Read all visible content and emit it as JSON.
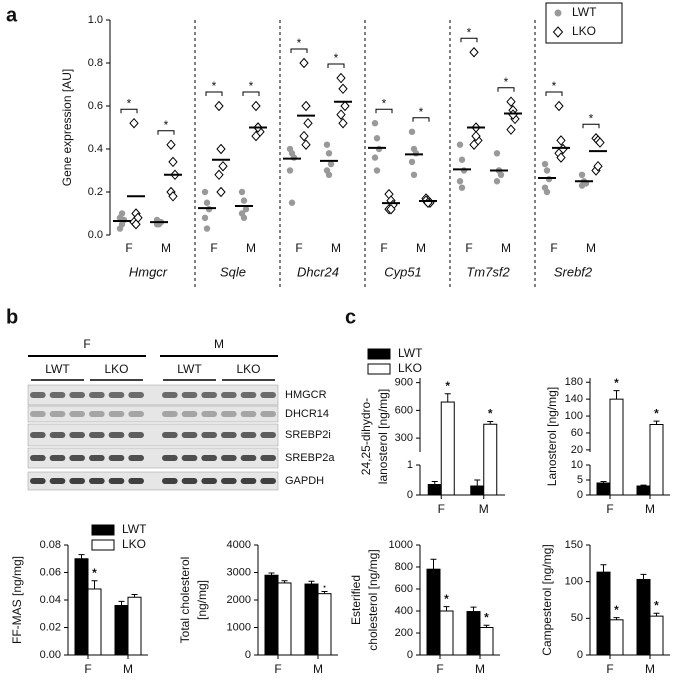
{
  "panel_labels": [
    "a",
    "b",
    "c"
  ],
  "blot": {
    "sex_labels": [
      "F",
      "M"
    ],
    "genotype_labels": [
      "LWT",
      "LKO",
      "LWT",
      "LKO"
    ],
    "proteins": [
      "HMGCR",
      "DHCR14",
      "SREBP2i",
      "SREBP2a",
      "GAPDH"
    ]
  },
  "chart_data": [
    {
      "type": "strip",
      "ylabel": "Gene expression [AU]",
      "group_labels": [
        "Hmgcr",
        "Sqle",
        "Dhcr24",
        "Cyp51",
        "Tm7sf2",
        "Srebf2"
      ],
      "categories": [
        "F",
        "M",
        "F",
        "M",
        "F",
        "M",
        "F",
        "M",
        "F",
        "M",
        "F",
        "M"
      ],
      "ylim": [
        0,
        1
      ],
      "yticks": [
        {
          "value": 0,
          "label": "0.0"
        },
        0.2,
        0.4,
        0.6,
        0.8,
        {
          "value": 1,
          "label": "1.0"
        }
      ],
      "significance": [
        "*",
        "*",
        "*",
        "*",
        "*",
        "*",
        "*",
        "*",
        "*",
        "*",
        "*",
        "*"
      ],
      "legend": "upper right",
      "series": [
        {
          "name": "LWT",
          "color": "#999999",
          "marker": "circle",
          "values": [
            [
              0.03,
              0.05,
              0.07,
              0.08,
              0.1
            ],
            [
              0.05,
              0.06,
              0.06,
              0.07,
              0.05
            ],
            [
              0.2,
              0.15,
              0.12,
              0.08,
              0.03
            ],
            [
              0.2,
              0.16,
              0.12,
              0.1,
              0.08
            ],
            [
              0.4,
              0.38,
              0.36,
              0.3,
              0.15
            ],
            [
              0.42,
              0.38,
              0.33,
              0.3,
              0.28
            ],
            [
              0.52,
              0.45,
              0.4,
              0.36,
              0.3
            ],
            [
              0.48,
              0.4,
              0.38,
              0.34,
              0.28
            ],
            [
              0.42,
              0.35,
              0.3,
              0.25,
              0.22
            ],
            [
              0.38,
              0.3,
              0.28,
              0.25,
              0.3
            ],
            [
              0.33,
              0.3,
              0.26,
              0.22,
              0.2
            ],
            [
              0.28,
              0.25,
              0.24,
              0.23
            ]
          ],
          "means": [
            0.065,
            0.06,
            0.125,
            0.135,
            0.355,
            0.345,
            0.405,
            0.375,
            0.305,
            0.3,
            0.265,
            0.25
          ]
        },
        {
          "name": "LKO",
          "color": "#000000",
          "marker": "diamond",
          "values": [
            [
              0.52,
              0.1,
              0.08,
              0.06,
              0.05
            ],
            [
              0.42,
              0.34,
              0.28,
              0.2,
              0.18
            ],
            [
              0.6,
              0.4,
              0.32,
              0.28,
              0.2
            ],
            [
              0.6,
              0.5,
              0.48,
              0.46,
              0.5
            ],
            [
              0.8,
              0.6,
              0.52,
              0.46,
              0.42
            ],
            [
              0.73,
              0.68,
              0.6,
              0.56,
              0.52
            ],
            [
              0.19,
              0.16,
              0.14,
              0.12,
              0.12
            ],
            [
              0.17,
              0.16,
              0.15,
              0.16,
              0.15
            ],
            [
              0.85,
              0.5,
              0.44,
              0.42,
              0.46
            ],
            [
              0.62,
              0.58,
              0.54,
              0.49,
              0.56
            ],
            [
              0.6,
              0.44,
              0.4,
              0.38,
              0.36
            ],
            [
              0.45,
              0.44,
              0.43,
              0.3,
              0.32
            ]
          ],
          "means": [
            0.18,
            0.28,
            0.35,
            0.5,
            0.555,
            0.62,
            0.148,
            0.158,
            0.5,
            0.565,
            0.405,
            0.39
          ]
        }
      ]
    },
    {
      "type": "bar",
      "ylabel": [
        "FF-MAS [ng/mg]"
      ],
      "categories": [
        "F",
        "M"
      ],
      "ylim": [
        0,
        0.08
      ],
      "yticks": [
        {
          "value": 0,
          "label": "0.00"
        },
        0.02,
        0.04,
        0.06,
        0.08
      ],
      "legend": "upper right",
      "series": [
        {
          "name": "LWT",
          "color": "#000000",
          "values": [
            0.07,
            0.036
          ],
          "errors": [
            0.003,
            0.003
          ],
          "significance": [
            null,
            null
          ]
        },
        {
          "name": "LKO",
          "color": "#ffffff",
          "values": [
            0.048,
            0.042
          ],
          "errors": [
            0.006,
            0.002
          ],
          "significance": [
            "*",
            null
          ]
        }
      ]
    },
    {
      "type": "bar",
      "ylabel": [
        "Total cholesterol",
        "[ng/mg]"
      ],
      "categories": [
        "F",
        "M"
      ],
      "ylim": [
        0,
        4000
      ],
      "yticks": [
        0,
        1000,
        2000,
        3000,
        4000
      ],
      "series": [
        {
          "color": "#000000",
          "values": [
            2900,
            2580
          ],
          "errors": [
            80,
            100
          ],
          "significance": [
            null,
            null
          ]
        },
        {
          "color": "#ffffff",
          "values": [
            2620,
            2230
          ],
          "errors": [
            80,
            80
          ],
          "significance": [
            null,
            "."
          ]
        }
      ]
    },
    {
      "type": "bar",
      "ylabel": [
        "Esterified",
        "cholesterol [ng/mg]"
      ],
      "categories": [
        "F",
        "M"
      ],
      "ylim": [
        0,
        1000
      ],
      "yticks": [
        0,
        200,
        400,
        600,
        800,
        1000
      ],
      "series": [
        {
          "color": "#000000",
          "values": [
            780,
            395
          ],
          "errors": [
            90,
            40
          ],
          "significance": [
            null,
            null
          ]
        },
        {
          "color": "#ffffff",
          "values": [
            400,
            250
          ],
          "errors": [
            40,
            20
          ],
          "significance": [
            "*",
            "*"
          ]
        }
      ]
    },
    {
      "type": "bar",
      "ylabel": [
        "Campesterol [ng/mg]"
      ],
      "categories": [
        "F",
        "M"
      ],
      "ylim": [
        0,
        150
      ],
      "yticks": [
        0,
        50,
        100,
        150
      ],
      "series": [
        {
          "color": "#000000",
          "values": [
            113,
            103
          ],
          "errors": [
            10,
            7
          ],
          "significance": [
            null,
            null
          ]
        },
        {
          "color": "#ffffff",
          "values": [
            48,
            53
          ],
          "errors": [
            3,
            4
          ],
          "significance": [
            "*",
            "*"
          ]
        }
      ]
    },
    {
      "type": "bar",
      "ylabel": [
        "24,25-dihydro-",
        "lanosterol [ng/mg]"
      ],
      "categories": [
        "F",
        "M"
      ],
      "axis_segments": [
        {
          "ylim": [
            0,
            1
          ],
          "yticks": [
            0,
            1
          ]
        },
        {
          "ylim": [
            150,
            950
          ],
          "yticks": [
            300,
            600,
            900
          ]
        }
      ],
      "legend": "upper left",
      "series": [
        {
          "name": "LWT",
          "color": "#000000",
          "values": [
            0.35,
            0.3
          ],
          "errors": [
            0.1,
            0.2
          ],
          "significance": [
            null,
            null
          ]
        },
        {
          "name": "LKO",
          "color": "#ffffff",
          "values": [
            690,
            450
          ],
          "errors": [
            90,
            30
          ],
          "significance": [
            "*",
            "*"
          ]
        }
      ]
    },
    {
      "type": "bar",
      "ylabel": [
        "Lanosterol [ng/mg]"
      ],
      "categories": [
        "F",
        "M"
      ],
      "axis_segments": [
        {
          "ylim": [
            0,
            10
          ],
          "yticks": [
            0,
            5,
            10
          ]
        },
        {
          "ylim": [
            15,
            190
          ],
          "yticks": [
            20,
            60,
            100,
            140,
            180
          ]
        }
      ],
      "series": [
        {
          "color": "#000000",
          "values": [
            4,
            3
          ],
          "errors": [
            0.5,
            0.3
          ],
          "significance": [
            null,
            null
          ]
        },
        {
          "color": "#ffffff",
          "values": [
            140,
            80
          ],
          "errors": [
            20,
            8
          ],
          "significance": [
            "*",
            "*"
          ]
        }
      ]
    }
  ]
}
